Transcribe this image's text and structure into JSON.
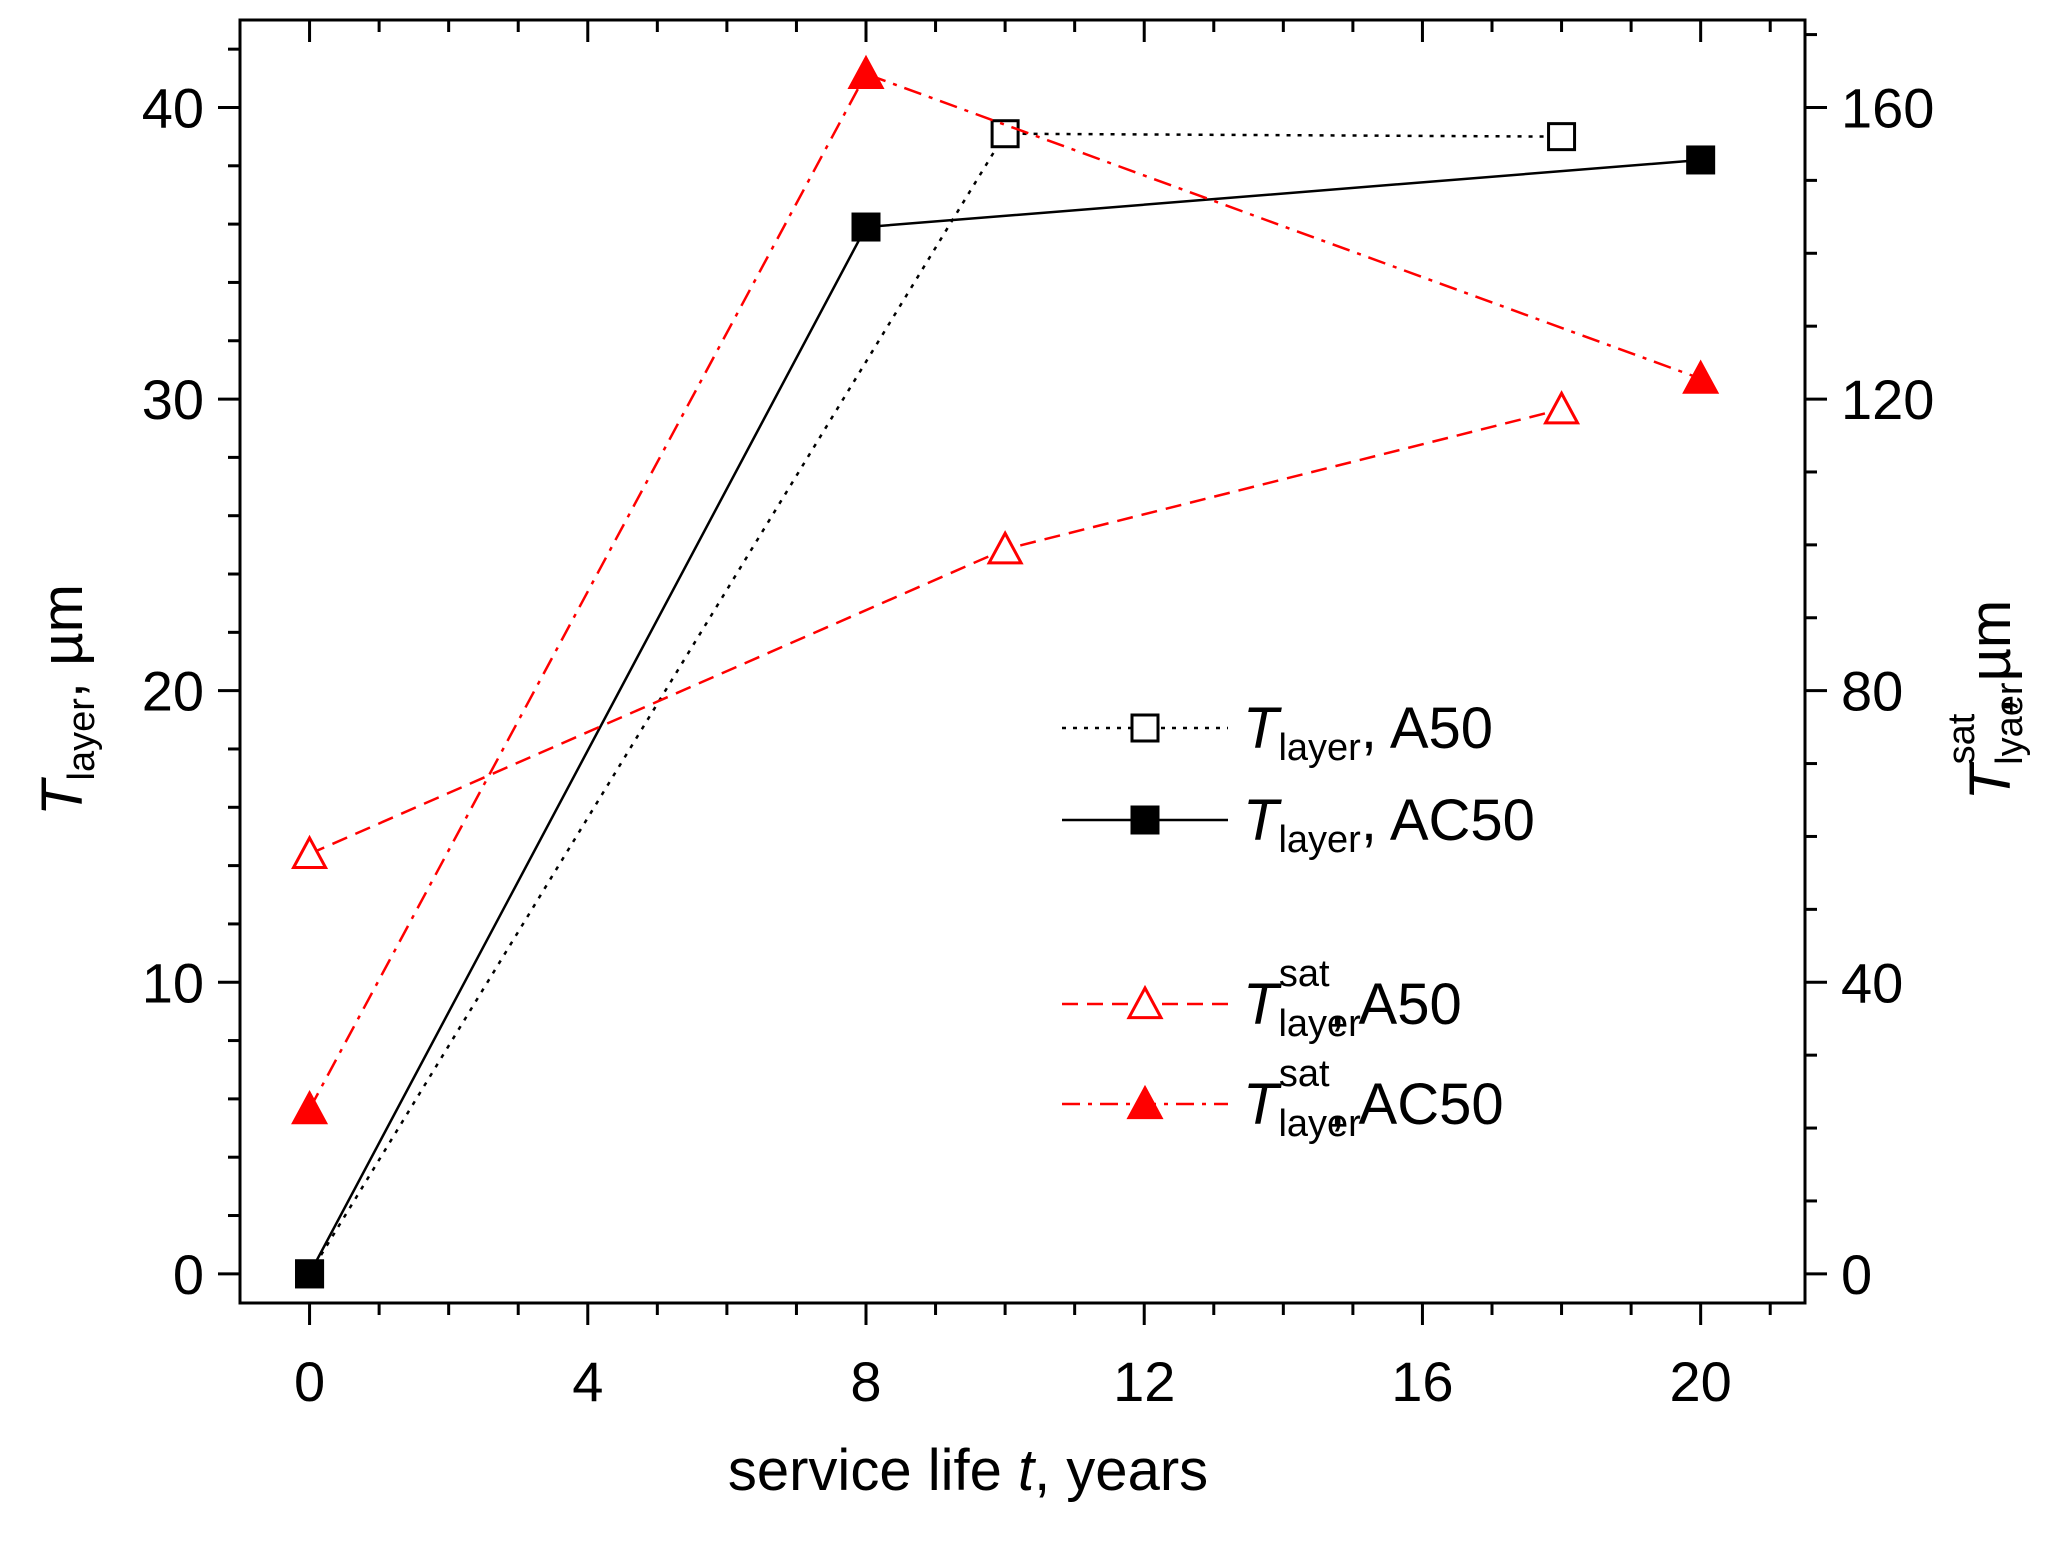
{
  "chart_data": {
    "type": "line",
    "title": "",
    "xlabel": {
      "prefix": "service life ",
      "italic": "t",
      "suffix": ", years"
    },
    "ylabel_left": {
      "symbol": "T",
      "subscript": "layer",
      "suffix": ", µm"
    },
    "ylabel_right": {
      "symbol": "T",
      "subscript": "lyaer",
      "superscript": "sat",
      "suffix": ", µm"
    },
    "xlim": [
      -1,
      21.5
    ],
    "xticks": [
      0,
      4,
      8,
      12,
      16,
      20
    ],
    "xtick_labels": [
      "0",
      "4",
      "8",
      "12",
      "16",
      "20"
    ],
    "ylim_left": [
      -1,
      43
    ],
    "yticks_left": [
      0,
      10,
      20,
      30,
      40
    ],
    "ytick_labels_left": [
      "0",
      "10",
      "20",
      "30",
      "40"
    ],
    "ylim_right": [
      -4,
      172
    ],
    "yticks_right": [
      0,
      40,
      80,
      120,
      160
    ],
    "ytick_labels_right": [
      "0",
      "40",
      "80",
      "120",
      "160"
    ],
    "grid": false,
    "series": [
      {
        "name": "T_layer, A50",
        "symbol": "T",
        "subscript": "layer",
        "superscript": "",
        "label_suffix": ", A50",
        "axis": "left",
        "color": "#000000",
        "marker": "square-open",
        "linestyle": "dotted",
        "x": [
          0,
          10,
          18
        ],
        "y": [
          0,
          39.1,
          39.0
        ]
      },
      {
        "name": "T_layer, AC50",
        "symbol": "T",
        "subscript": "layer",
        "superscript": "",
        "label_suffix": ", AC50",
        "axis": "left",
        "color": "#000000",
        "marker": "square-filled",
        "linestyle": "solid",
        "x": [
          0,
          8,
          20
        ],
        "y": [
          0,
          35.9,
          38.2
        ]
      },
      {
        "name": "T_layer^sat, A50",
        "symbol": "T",
        "subscript": "layer",
        "superscript": "sat",
        "label_suffix": ", A50",
        "axis": "right",
        "color": "#ff0000",
        "marker": "triangle-open",
        "linestyle": "dashed",
        "x": [
          0,
          10,
          18
        ],
        "y": [
          57.6,
          99.4,
          118.6
        ]
      },
      {
        "name": "T_layer^sat, AC50",
        "symbol": "T",
        "subscript": "layer",
        "superscript": "sat",
        "label_suffix": ", AC50",
        "axis": "right",
        "color": "#ff0000",
        "marker": "triangle-filled",
        "linestyle": "dashdot",
        "x": [
          0,
          8,
          20
        ],
        "y": [
          22.6,
          164.6,
          122.8
        ]
      }
    ],
    "legend_position": "center-right"
  }
}
